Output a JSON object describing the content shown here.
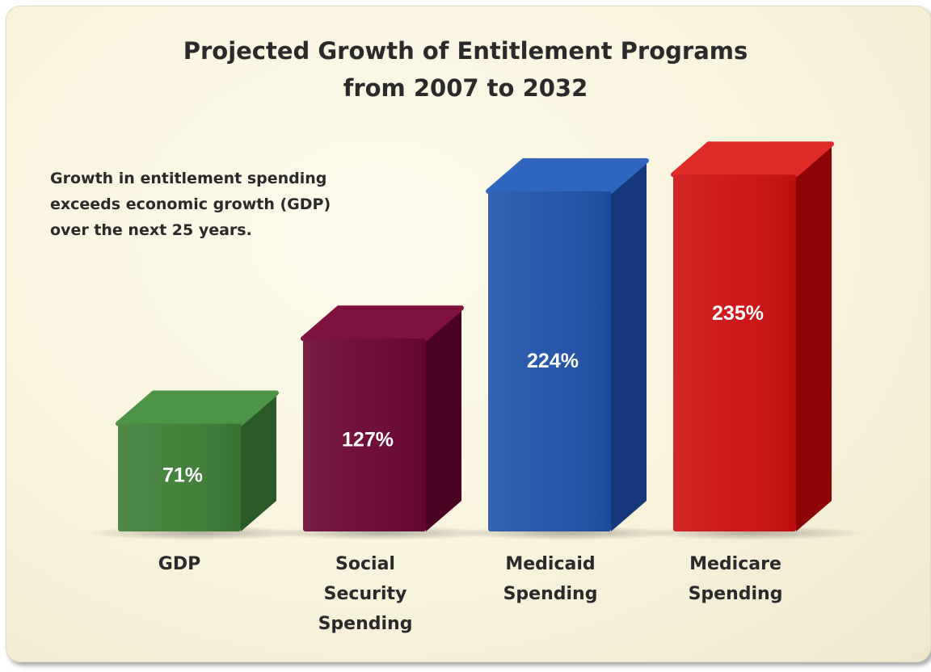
{
  "chart_data": {
    "type": "bar",
    "title": [
      "Projected Growth of Entitlement Programs",
      "from 2007 to 2032"
    ],
    "annotation": [
      "Growth in entitlement spending",
      "exceeds economic growth (GDP)",
      "over the next 25 years."
    ],
    "categories": [
      [
        "GDP"
      ],
      [
        "Social",
        "Security",
        "Spending"
      ],
      [
        "Medicaid",
        "Spending"
      ],
      [
        "Medicare",
        "Spending"
      ]
    ],
    "values": [
      71,
      127,
      224,
      235
    ],
    "data_labels": [
      "71%",
      "127%",
      "224%",
      "235%"
    ],
    "colors": [
      {
        "front": "#3c7c34",
        "side": "#2a5a25",
        "top": "#4e9446"
      },
      {
        "front": "#6a0532",
        "side": "#4a0222",
        "top": "#80123f"
      },
      {
        "front": "#1f51a8",
        "side": "#15397a",
        "top": "#3166c0"
      },
      {
        "front": "#cc0f10",
        "side": "#8e0506",
        "top": "#e02b29"
      }
    ],
    "grid": false,
    "legend": "none"
  }
}
